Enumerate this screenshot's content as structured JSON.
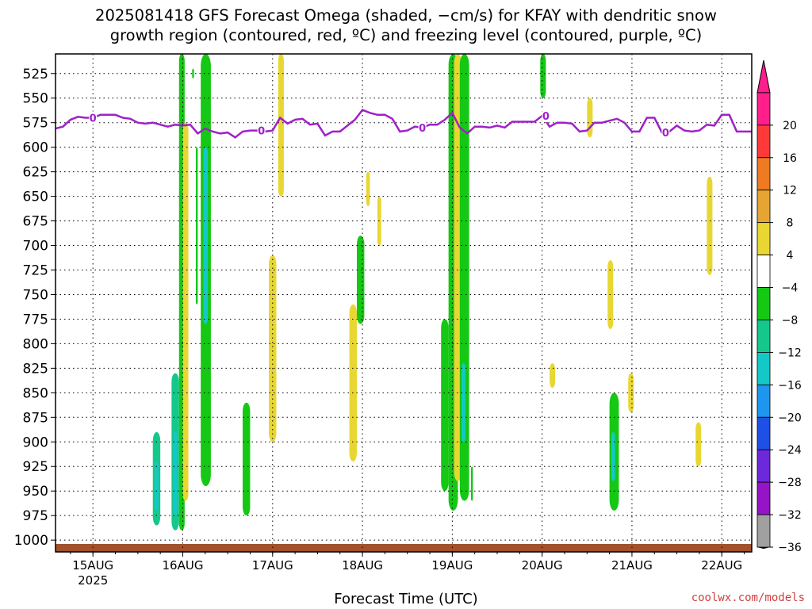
{
  "title_line1": "2025081418 GFS Forecast Omega (shaded, −cm/s) for KFAY with dendritic snow",
  "title_line2": "growth region (contoured, red, ºC) and freezing level (contoured, purple, ºC)",
  "credit": "coolwx.com/models",
  "chart_data": {
    "type": "heatmap",
    "xlabel": "Forecast Time (UTC)",
    "ylabel": "",
    "x_ticks": [
      {
        "label": "15AUG",
        "sub": "2025",
        "hours": 10
      },
      {
        "label": "16AUG",
        "hours": 34
      },
      {
        "label": "17AUG",
        "hours": 58
      },
      {
        "label": "18AUG",
        "hours": 82
      },
      {
        "label": "19AUG",
        "hours": 106
      },
      {
        "label": "20AUG",
        "hours": 130
      },
      {
        "label": "21AUG",
        "hours": 154
      },
      {
        "label": "22AUG",
        "hours": 178
      }
    ],
    "x_range_hours": [
      0,
      186
    ],
    "y_levels_hpa": [
      525,
      550,
      575,
      600,
      625,
      650,
      675,
      700,
      725,
      750,
      775,
      800,
      825,
      850,
      875,
      900,
      925,
      950,
      975,
      1000
    ],
    "y_range_hpa": [
      505,
      1012
    ],
    "colorbar": {
      "labels": [
        "20",
        "16",
        "12",
        "8",
        "4",
        "−4",
        "−8",
        "−12",
        "−16",
        "−20",
        "−24",
        "−28",
        "−32",
        "−36"
      ],
      "colors": [
        "#ff1e8c",
        "#ff3838",
        "#ee7a22",
        "#e6a532",
        "#e8d732",
        "#ffffff",
        "#14c814",
        "#14c88c",
        "#14c8c8",
        "#1e96f0",
        "#1e50e6",
        "#6e28dc",
        "#9614c8",
        "#a0a0a0"
      ]
    },
    "freezing_level": {
      "color": "#a020c8",
      "label": "0",
      "points": [
        [
          0,
          581
        ],
        [
          2,
          579
        ],
        [
          4,
          572
        ],
        [
          6,
          569
        ],
        [
          8,
          570
        ],
        [
          10,
          570
        ],
        [
          12,
          567
        ],
        [
          14,
          567
        ],
        [
          16,
          567
        ],
        [
          18,
          570
        ],
        [
          20,
          571
        ],
        [
          22,
          575
        ],
        [
          24,
          576
        ],
        [
          26,
          575
        ],
        [
          28,
          577
        ],
        [
          30,
          579
        ],
        [
          32,
          577
        ],
        [
          34,
          578
        ],
        [
          36,
          577
        ],
        [
          38,
          586
        ],
        [
          40,
          581
        ],
        [
          42,
          584
        ],
        [
          44,
          586
        ],
        [
          46,
          585
        ],
        [
          48,
          590
        ],
        [
          50,
          584
        ],
        [
          52,
          583
        ],
        [
          54,
          583
        ],
        [
          56,
          584
        ],
        [
          58,
          583
        ],
        [
          60,
          570
        ],
        [
          62,
          576
        ],
        [
          64,
          572
        ],
        [
          66,
          571
        ],
        [
          68,
          577
        ],
        [
          70,
          576
        ],
        [
          72,
          588
        ],
        [
          74,
          584
        ],
        [
          76,
          584
        ],
        [
          78,
          578
        ],
        [
          80,
          572
        ],
        [
          82,
          562
        ],
        [
          84,
          565
        ],
        [
          86,
          567
        ],
        [
          88,
          567
        ],
        [
          90,
          571
        ],
        [
          92,
          584
        ],
        [
          94,
          583
        ],
        [
          96,
          579
        ],
        [
          98,
          580
        ],
        [
          100,
          577
        ],
        [
          102,
          577
        ],
        [
          104,
          572
        ],
        [
          106,
          565
        ],
        [
          108,
          580
        ],
        [
          110,
          586
        ],
        [
          112,
          579
        ],
        [
          114,
          579
        ],
        [
          116,
          580
        ],
        [
          118,
          578
        ],
        [
          120,
          580
        ],
        [
          122,
          574
        ],
        [
          124,
          574
        ],
        [
          126,
          574
        ],
        [
          128,
          574
        ],
        [
          130,
          568
        ],
        [
          132,
          579
        ],
        [
          134,
          575
        ],
        [
          136,
          575
        ],
        [
          138,
          576
        ],
        [
          140,
          584
        ],
        [
          142,
          583
        ],
        [
          144,
          575
        ],
        [
          146,
          575
        ],
        [
          148,
          573
        ],
        [
          150,
          571
        ],
        [
          152,
          575
        ],
        [
          154,
          584
        ],
        [
          156,
          584
        ],
        [
          158,
          570
        ],
        [
          160,
          570
        ],
        [
          162,
          585
        ],
        [
          164,
          584
        ],
        [
          166,
          578
        ],
        [
          168,
          583
        ],
        [
          170,
          584
        ],
        [
          172,
          583
        ],
        [
          174,
          577
        ],
        [
          176,
          578
        ],
        [
          178,
          567
        ],
        [
          180,
          567
        ],
        [
          182,
          584
        ],
        [
          186,
          584
        ]
      ],
      "labels_at_hours": [
        10,
        55,
        98,
        131,
        163
      ]
    },
    "ground_color": "#a0522d",
    "shading_note_values": "vertical motion columns estimated from image",
    "shaded_regions": [
      {
        "x": [
          26,
          28
        ],
        "p": [
          890,
          985
        ],
        "value": -10
      },
      {
        "x": [
          26.5,
          27.5
        ],
        "p": [
          920,
          970
        ],
        "value": -16
      },
      {
        "x": [
          31,
          33
        ],
        "p": [
          830,
          990
        ],
        "value": -10
      },
      {
        "x": [
          31.5,
          32.5
        ],
        "p": [
          890,
          975
        ],
        "value": -16
      },
      {
        "x": [
          33,
          34.5
        ],
        "p": [
          505,
          990
        ],
        "value": -6
      },
      {
        "x": [
          34,
          35.5
        ],
        "p": [
          575,
          960
        ],
        "value": 5
      },
      {
        "x": [
          36.5,
          37
        ],
        "p": [
          520,
          530
        ],
        "value": -6
      },
      {
        "x": [
          37.5,
          38
        ],
        "p": [
          600,
          760
        ],
        "value": -6
      },
      {
        "x": [
          38.8,
          41.5
        ],
        "p": [
          505,
          945
        ],
        "value": -6
      },
      {
        "x": [
          39.5,
          40.7
        ],
        "p": [
          600,
          780
        ],
        "value": -12
      },
      {
        "x": [
          50,
          52
        ],
        "p": [
          860,
          975
        ],
        "value": -6
      },
      {
        "x": [
          57,
          59
        ],
        "p": [
          710,
          900
        ],
        "value": 5
      },
      {
        "x": [
          59.5,
          61
        ],
        "p": [
          505,
          650
        ],
        "value": 5
      },
      {
        "x": [
          78.5,
          80.5
        ],
        "p": [
          760,
          920
        ],
        "value": 5
      },
      {
        "x": [
          80.5,
          82.5
        ],
        "p": [
          690,
          780
        ],
        "value": -6
      },
      {
        "x": [
          83,
          84
        ],
        "p": [
          625,
          660
        ],
        "value": 5
      },
      {
        "x": [
          86,
          87
        ],
        "p": [
          650,
          700
        ],
        "value": 5
      },
      {
        "x": [
          103,
          105
        ],
        "p": [
          775,
          950
        ],
        "value": -6
      },
      {
        "x": [
          105,
          107.5
        ],
        "p": [
          505,
          970
        ],
        "value": -6
      },
      {
        "x": [
          106.5,
          108.5
        ],
        "p": [
          505,
          940
        ],
        "value": 5
      },
      {
        "x": [
          108,
          110.5
        ],
        "p": [
          505,
          960
        ],
        "value": -6
      },
      {
        "x": [
          108.5,
          109.5
        ],
        "p": [
          820,
          900
        ],
        "value": -14
      },
      {
        "x": [
          111,
          111.5
        ],
        "p": [
          925,
          960
        ],
        "value": -6
      },
      {
        "x": [
          129.5,
          131
        ],
        "p": [
          505,
          550
        ],
        "value": -6
      },
      {
        "x": [
          132,
          133.5
        ],
        "p": [
          820,
          845
        ],
        "value": 5
      },
      {
        "x": [
          142,
          143.5
        ],
        "p": [
          550,
          590
        ],
        "value": 5
      },
      {
        "x": [
          147.5,
          149
        ],
        "p": [
          715,
          785
        ],
        "value": 5
      },
      {
        "x": [
          148,
          150.5
        ],
        "p": [
          850,
          970
        ],
        "value": -6
      },
      {
        "x": [
          148.5,
          149.5
        ],
        "p": [
          890,
          940
        ],
        "value": -12
      },
      {
        "x": [
          153,
          154.5
        ],
        "p": [
          830,
          870
        ],
        "value": 5
      },
      {
        "x": [
          171,
          172.5
        ],
        "p": [
          880,
          925
        ],
        "value": 5
      },
      {
        "x": [
          174,
          175.5
        ],
        "p": [
          630,
          730
        ],
        "value": 5
      }
    ]
  }
}
